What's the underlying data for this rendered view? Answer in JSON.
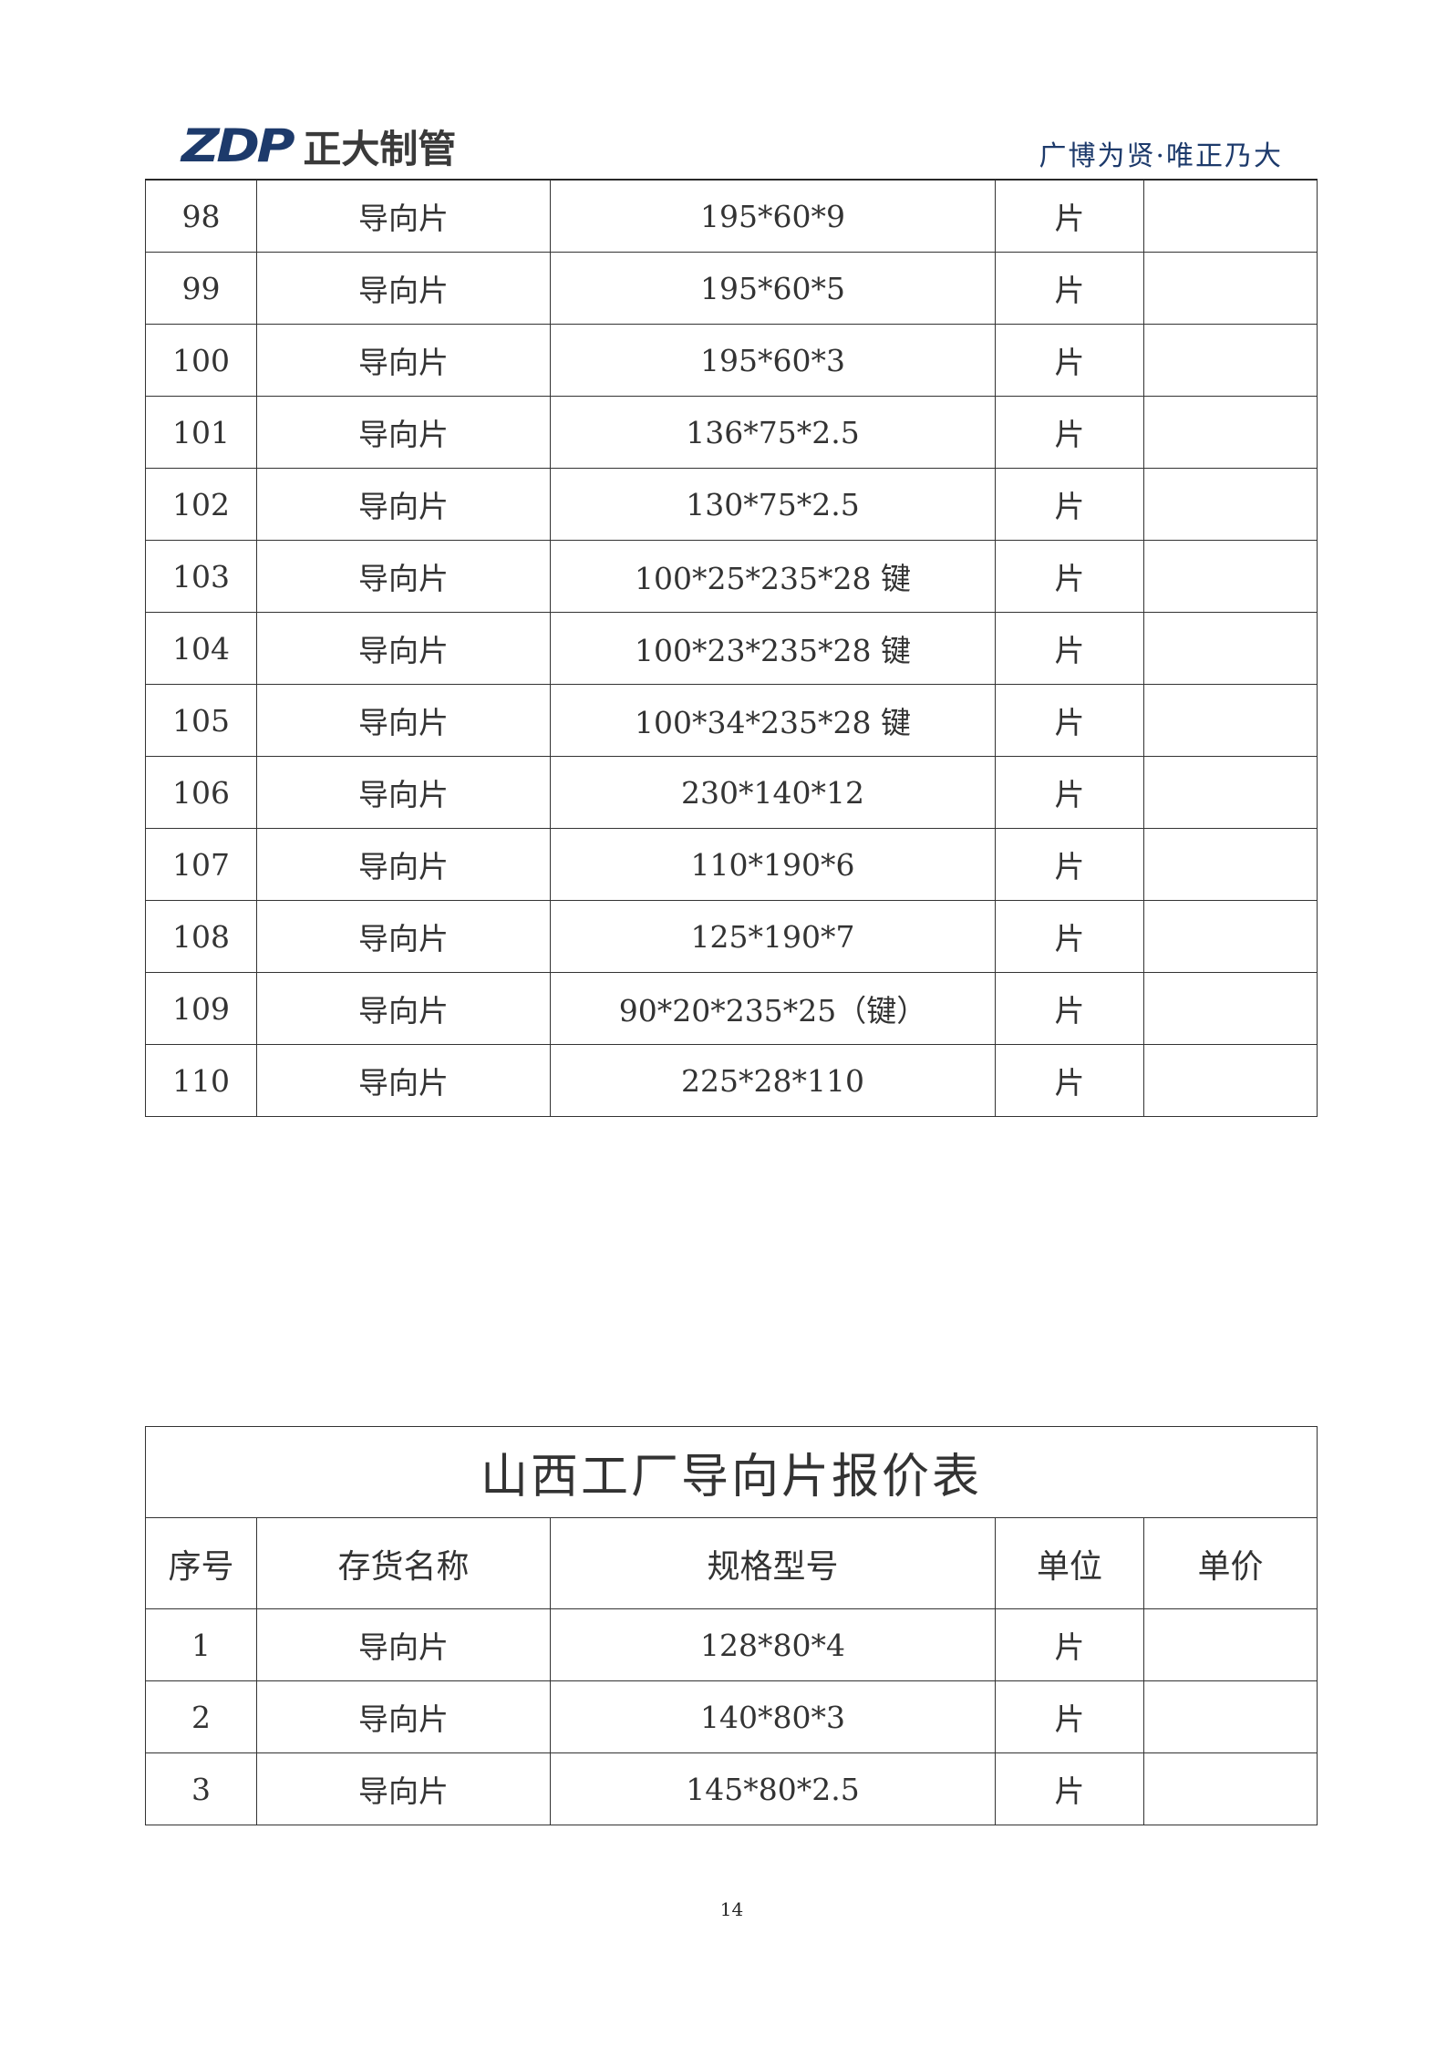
{
  "header": {
    "logo_mark": "ZDP",
    "logo_text": "正大制管",
    "slogan": "广博为贤·唯正乃大"
  },
  "table1": {
    "rows": [
      [
        "98",
        "导向片",
        "195*60*9",
        "片",
        ""
      ],
      [
        "99",
        "导向片",
        "195*60*5",
        "片",
        ""
      ],
      [
        "100",
        "导向片",
        "195*60*3",
        "片",
        ""
      ],
      [
        "101",
        "导向片",
        "136*75*2.5",
        "片",
        ""
      ],
      [
        "102",
        "导向片",
        "130*75*2.5",
        "片",
        ""
      ],
      [
        "103",
        "导向片",
        "100*25*235*28 键",
        "片",
        ""
      ],
      [
        "104",
        "导向片",
        "100*23*235*28 键",
        "片",
        ""
      ],
      [
        "105",
        "导向片",
        "100*34*235*28 键",
        "片",
        ""
      ],
      [
        "106",
        "导向片",
        "230*140*12",
        "片",
        ""
      ],
      [
        "107",
        "导向片",
        "110*190*6",
        "片",
        ""
      ],
      [
        "108",
        "导向片",
        "125*190*7",
        "片",
        ""
      ],
      [
        "109",
        "导向片",
        "90*20*235*25（键）",
        "片",
        ""
      ],
      [
        "110",
        "导向片",
        "225*28*110",
        "片",
        ""
      ]
    ]
  },
  "table2": {
    "title": "山西工厂导向片报价表",
    "headers": [
      "序号",
      "存货名称",
      "规格型号",
      "单位",
      "单价"
    ],
    "rows": [
      [
        "1",
        "导向片",
        "128*80*4",
        "片",
        ""
      ],
      [
        "2",
        "导向片",
        "140*80*3",
        "片",
        ""
      ],
      [
        "3",
        "导向片",
        "145*80*2.5",
        "片",
        ""
      ]
    ]
  },
  "page_number": "14"
}
